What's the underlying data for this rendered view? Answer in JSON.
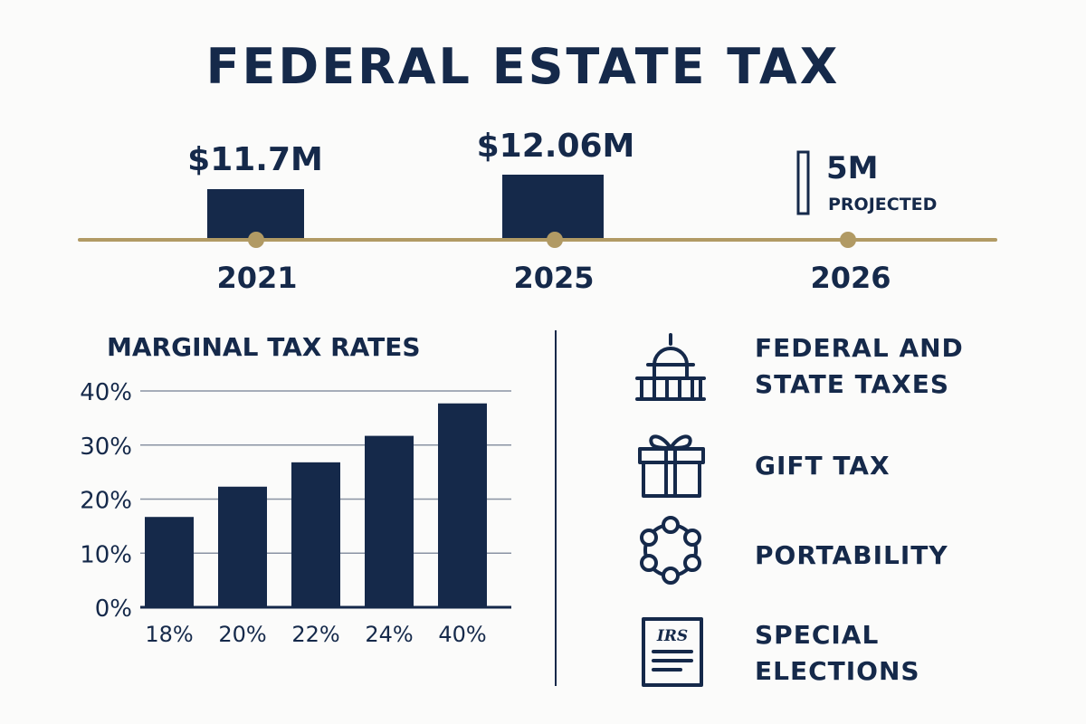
{
  "title": "FEDERAL ESTATE TAX",
  "colors": {
    "navy": "#15294a",
    "gold": "#b19a64",
    "grid": "#8a93a3",
    "background": "#fbfbfa"
  },
  "timeline": [
    {
      "year": "2021",
      "label": "$11.7M",
      "value_millions": 11.7,
      "style": "filled"
    },
    {
      "year": "2025",
      "label": "$12.06M",
      "value_millions": 12.06,
      "style": "filled"
    },
    {
      "year": "2026",
      "label": "5M",
      "sublabel": "PROJECTED",
      "value_millions": 5,
      "style": "outline"
    }
  ],
  "chart_data": {
    "type": "bar",
    "title": "MARGINAL TAX RATES",
    "categories": [
      "18%",
      "20%",
      "22%",
      "24%",
      "40%"
    ],
    "values": [
      16.7,
      22.3,
      26.8,
      31.7,
      37.7
    ],
    "yticks": [
      "0%",
      "10%",
      "20%",
      "30%",
      "40%"
    ],
    "ylim": [
      0,
      40
    ],
    "grid": true,
    "xlabel": "",
    "ylabel": ""
  },
  "topics": [
    {
      "icon": "capitol-building-icon",
      "lines": [
        "FEDERAL AND",
        "STATE TAXES"
      ]
    },
    {
      "icon": "gift-icon",
      "lines": [
        "GIFT TAX"
      ]
    },
    {
      "icon": "portability-circle-icon",
      "lines": [
        "PORTABILITY"
      ]
    },
    {
      "icon": "irs-form-icon",
      "badge": "IRS",
      "lines": [
        "SPECIAL",
        "ELECTIONS"
      ]
    }
  ]
}
